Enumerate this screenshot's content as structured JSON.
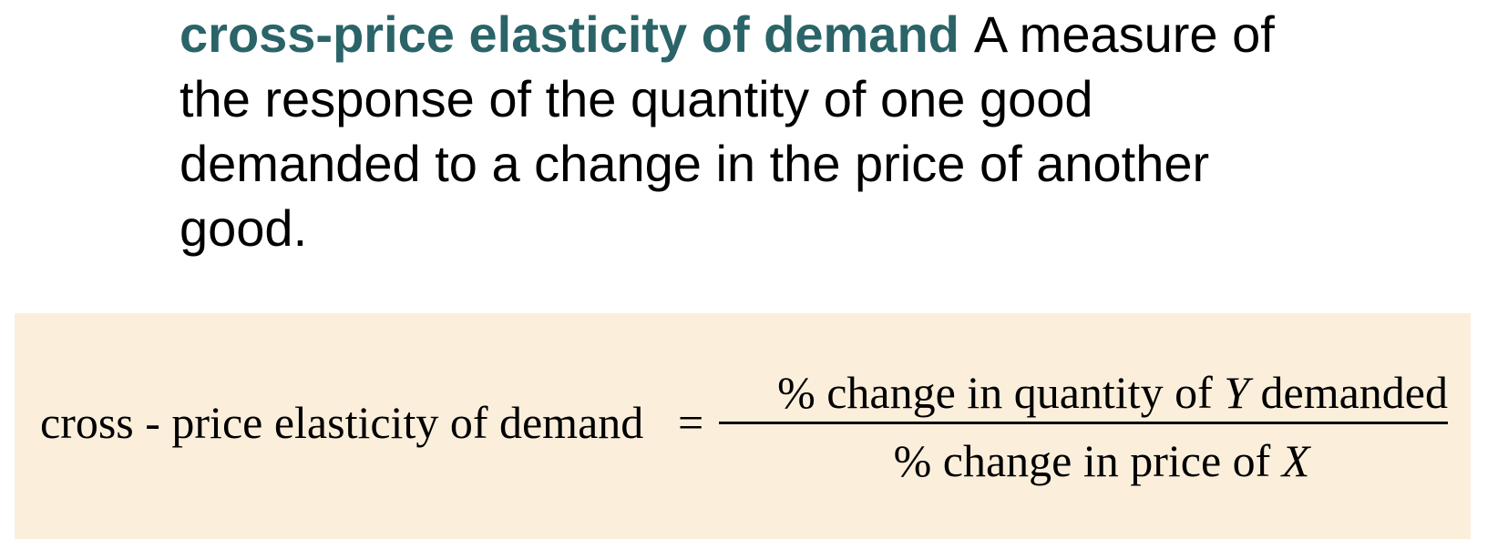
{
  "definition": {
    "term": "cross-price elasticity of demand",
    "text": "A measure of the response of the quantity of one good demanded to a change in the price of another good."
  },
  "formula": {
    "lhs": "cross - price elasticity of demand",
    "equals": "=",
    "numerator_prefix": "% change in quantity of ",
    "numerator_var": "Y",
    "numerator_suffix": " demanded",
    "denominator_prefix": "% change in price of ",
    "denominator_var": "X"
  },
  "colors": {
    "term": "#2a6468",
    "formula_background": "#fbefdc"
  }
}
